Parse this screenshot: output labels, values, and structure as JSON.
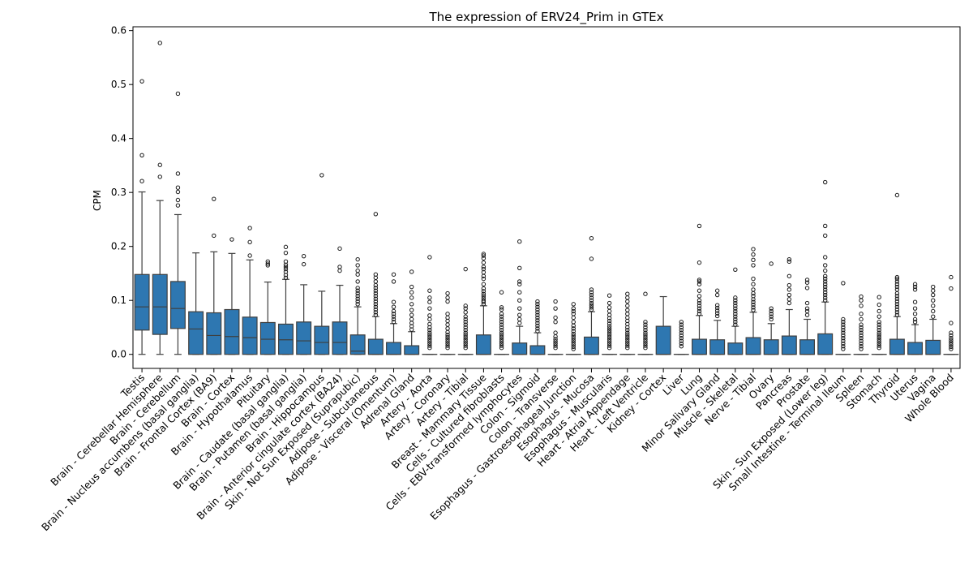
{
  "chart_data": {
    "type": "box",
    "title": "The expression of ERV24_Prim in GTEx",
    "xlabel": "",
    "ylabel": "CPM",
    "ylim": [
      -0.026,
      0.607
    ],
    "yticks": [
      0.0,
      0.1,
      0.2,
      0.3,
      0.4,
      0.5,
      0.6
    ],
    "ytick_labels": [
      "0.0",
      "0.1",
      "0.2",
      "0.3",
      "0.4",
      "0.5",
      "0.6"
    ],
    "grid": false,
    "color": "#2e77b1",
    "categories": [
      "Testis",
      "Brain - Cerebellar Hemisphere",
      "Brain - Cerebellum",
      "Brain - Nucleus accumbens (basal ganglia)",
      "Brain - Frontal Cortex (BA9)",
      "Brain - Cortex",
      "Brain - Hypothalamus",
      "Pituitary",
      "Brain - Caudate (basal ganglia)",
      "Brain - Putamen (basal ganglia)",
      "Brain - Hippocampus",
      "Brain - Anterior cingulate cortex (BA24)",
      "Skin - Not Sun Exposed (Suprapubic)",
      "Adipose - Subcutaneous",
      "Adipose - Visceral (Omentum)",
      "Adrenal Gland",
      "Artery - Aorta",
      "Artery - Coronary",
      "Artery - Tibial",
      "Breast - Mammary Tissue",
      "Cells - Cultured fibroblasts",
      "Cells - EBV-transformed lymphocytes",
      "Colon - Sigmoid",
      "Colon - Transverse",
      "Esophagus - Gastroesophageal Junction",
      "Esophagus - Mucosa",
      "Esophagus - Muscularis",
      "Heart - Atrial Appendage",
      "Heart - Left Ventricle",
      "Kidney - Cortex",
      "Liver",
      "Lung",
      "Minor Salivary Gland",
      "Muscle - Skeletal",
      "Nerve - Tibial",
      "Ovary",
      "Pancreas",
      "Prostate",
      "Skin - Sun Exposed (Lower leg)",
      "Small Intestine - Terminal Ileum",
      "Spleen",
      "Stomach",
      "Thyroid",
      "Uterus",
      "Vagina",
      "Whole Blood"
    ],
    "boxes": [
      {
        "min": 0.0,
        "q1": 0.045,
        "median": 0.088,
        "q3": 0.148,
        "max": 0.301,
        "outliers": [
          0.321,
          0.369,
          0.506
        ]
      },
      {
        "min": 0.0,
        "q1": 0.037,
        "median": 0.088,
        "q3": 0.148,
        "max": 0.285,
        "outliers": [
          0.329,
          0.351,
          0.577
        ]
      },
      {
        "min": 0.0,
        "q1": 0.048,
        "median": 0.085,
        "q3": 0.135,
        "max": 0.259,
        "outliers": [
          0.276,
          0.286,
          0.301,
          0.309,
          0.335,
          0.483
        ]
      },
      {
        "min": 0.0,
        "q1": 0.0,
        "median": 0.047,
        "q3": 0.079,
        "max": 0.188,
        "outliers": []
      },
      {
        "min": 0.0,
        "q1": 0.0,
        "median": 0.035,
        "q3": 0.077,
        "max": 0.19,
        "outliers": [
          0.22,
          0.288
        ]
      },
      {
        "min": 0.0,
        "q1": 0.0,
        "median": 0.033,
        "q3": 0.083,
        "max": 0.187,
        "outliers": [
          0.213
        ]
      },
      {
        "min": 0.0,
        "q1": 0.0,
        "median": 0.031,
        "q3": 0.069,
        "max": 0.175,
        "outliers": [
          0.183,
          0.208,
          0.234
        ]
      },
      {
        "min": 0.0,
        "q1": 0.0,
        "median": 0.028,
        "q3": 0.059,
        "max": 0.134,
        "outliers": [
          0.165,
          0.168,
          0.172
        ]
      },
      {
        "min": 0.0,
        "q1": 0.0,
        "median": 0.027,
        "q3": 0.056,
        "max": 0.139,
        "outliers": [
          0.142,
          0.147,
          0.153,
          0.158,
          0.162,
          0.166,
          0.172,
          0.188,
          0.199
        ]
      },
      {
        "min": 0.0,
        "q1": 0.0,
        "median": 0.025,
        "q3": 0.06,
        "max": 0.129,
        "outliers": [
          0.167,
          0.182
        ]
      },
      {
        "min": 0.0,
        "q1": 0.0,
        "median": 0.022,
        "q3": 0.052,
        "max": 0.117,
        "outliers": [
          0.332
        ]
      },
      {
        "min": 0.0,
        "q1": 0.0,
        "median": 0.022,
        "q3": 0.06,
        "max": 0.128,
        "outliers": [
          0.155,
          0.162,
          0.196
        ]
      },
      {
        "min": 0.0,
        "q1": 0.0,
        "median": 0.006,
        "q3": 0.036,
        "max": 0.088,
        "outliers": [
          0.093,
          0.098,
          0.103,
          0.108,
          0.113,
          0.118,
          0.123,
          0.135,
          0.148,
          0.155,
          0.165,
          0.176
        ]
      },
      {
        "min": 0.0,
        "q1": 0.0,
        "median": 0.0,
        "q3": 0.028,
        "max": 0.07,
        "outliers": [
          0.073,
          0.078,
          0.083,
          0.088,
          0.093,
          0.098,
          0.103,
          0.108,
          0.113,
          0.118,
          0.123,
          0.128,
          0.135,
          0.142,
          0.148,
          0.26
        ]
      },
      {
        "min": 0.0,
        "q1": 0.0,
        "median": 0.0,
        "q3": 0.022,
        "max": 0.057,
        "outliers": [
          0.06,
          0.065,
          0.07,
          0.075,
          0.08,
          0.088,
          0.097,
          0.135,
          0.148
        ]
      },
      {
        "min": 0.0,
        "q1": 0.0,
        "median": 0.0,
        "q3": 0.016,
        "max": 0.042,
        "outliers": [
          0.046,
          0.052,
          0.058,
          0.065,
          0.073,
          0.082,
          0.093,
          0.105,
          0.115,
          0.125,
          0.153
        ]
      },
      {
        "min": 0.0,
        "q1": 0.0,
        "median": 0.0,
        "q3": 0.0,
        "max": 0.0,
        "outliers": [
          0.012,
          0.016,
          0.02,
          0.024,
          0.028,
          0.032,
          0.036,
          0.04,
          0.045,
          0.05,
          0.056,
          0.065,
          0.072,
          0.085,
          0.097,
          0.105,
          0.118,
          0.18
        ]
      },
      {
        "min": 0.0,
        "q1": 0.0,
        "median": 0.0,
        "q3": 0.0,
        "max": 0.0,
        "outliers": [
          0.012,
          0.016,
          0.02,
          0.024,
          0.028,
          0.032,
          0.036,
          0.041,
          0.048,
          0.055,
          0.062,
          0.068,
          0.075,
          0.098,
          0.105,
          0.113
        ]
      },
      {
        "min": 0.0,
        "q1": 0.0,
        "median": 0.0,
        "q3": 0.0,
        "max": 0.0,
        "outliers": [
          0.012,
          0.016,
          0.02,
          0.024,
          0.028,
          0.032,
          0.036,
          0.04,
          0.045,
          0.05,
          0.055,
          0.06,
          0.065,
          0.07,
          0.078,
          0.085,
          0.09,
          0.158
        ]
      },
      {
        "min": 0.0,
        "q1": 0.0,
        "median": 0.0,
        "q3": 0.036,
        "max": 0.09,
        "outliers": [
          0.093,
          0.097,
          0.1,
          0.104,
          0.108,
          0.112,
          0.117,
          0.122,
          0.13,
          0.14,
          0.145,
          0.152,
          0.158,
          0.162,
          0.17,
          0.178,
          0.183,
          0.186
        ]
      },
      {
        "min": 0.0,
        "q1": 0.0,
        "median": 0.0,
        "q3": 0.0,
        "max": 0.0,
        "outliers": [
          0.012,
          0.016,
          0.02,
          0.024,
          0.028,
          0.032,
          0.036,
          0.04,
          0.045,
          0.05,
          0.055,
          0.06,
          0.065,
          0.07,
          0.075,
          0.083,
          0.087,
          0.115
        ]
      },
      {
        "min": 0.0,
        "q1": 0.0,
        "median": 0.0,
        "q3": 0.021,
        "max": 0.052,
        "outliers": [
          0.058,
          0.065,
          0.073,
          0.085,
          0.1,
          0.115,
          0.13,
          0.135,
          0.16,
          0.209
        ]
      },
      {
        "min": 0.0,
        "q1": 0.0,
        "median": 0.0,
        "q3": 0.016,
        "max": 0.04,
        "outliers": [
          0.043,
          0.048,
          0.053,
          0.058,
          0.063,
          0.068,
          0.073,
          0.078,
          0.083,
          0.088,
          0.093,
          0.098
        ]
      },
      {
        "min": 0.0,
        "q1": 0.0,
        "median": 0.0,
        "q3": 0.0,
        "max": 0.0,
        "outliers": [
          0.012,
          0.016,
          0.02,
          0.024,
          0.028,
          0.033,
          0.04,
          0.06,
          0.068,
          0.085,
          0.098
        ]
      },
      {
        "min": 0.0,
        "q1": 0.0,
        "median": 0.0,
        "q3": 0.0,
        "max": 0.0,
        "outliers": [
          0.01,
          0.014,
          0.018,
          0.022,
          0.026,
          0.03,
          0.034,
          0.038,
          0.043,
          0.048,
          0.053,
          0.06,
          0.068,
          0.075,
          0.08,
          0.085,
          0.093
        ]
      },
      {
        "min": 0.0,
        "q1": 0.0,
        "median": 0.0,
        "q3": 0.032,
        "max": 0.079,
        "outliers": [
          0.083,
          0.087,
          0.091,
          0.095,
          0.1,
          0.105,
          0.11,
          0.115,
          0.12,
          0.177,
          0.215
        ]
      },
      {
        "min": 0.0,
        "q1": 0.0,
        "median": 0.0,
        "q3": 0.0,
        "max": 0.0,
        "outliers": [
          0.012,
          0.016,
          0.02,
          0.024,
          0.028,
          0.032,
          0.036,
          0.04,
          0.044,
          0.048,
          0.052,
          0.057,
          0.062,
          0.067,
          0.073,
          0.08,
          0.087,
          0.095,
          0.109
        ]
      },
      {
        "min": 0.0,
        "q1": 0.0,
        "median": 0.0,
        "q3": 0.0,
        "max": 0.0,
        "outliers": [
          0.012,
          0.016,
          0.02,
          0.024,
          0.028,
          0.032,
          0.036,
          0.04,
          0.045,
          0.05,
          0.056,
          0.062,
          0.068,
          0.075,
          0.082,
          0.09,
          0.098,
          0.105,
          0.112
        ]
      },
      {
        "min": 0.0,
        "q1": 0.0,
        "median": 0.0,
        "q3": 0.0,
        "max": 0.0,
        "outliers": [
          0.012,
          0.016,
          0.02,
          0.024,
          0.028,
          0.032,
          0.036,
          0.04,
          0.045,
          0.05,
          0.055,
          0.06,
          0.112
        ]
      },
      {
        "min": 0.0,
        "q1": 0.0,
        "median": 0.0,
        "q3": 0.052,
        "max": 0.107,
        "outliers": []
      },
      {
        "min": 0.0,
        "q1": 0.0,
        "median": 0.0,
        "q3": 0.0,
        "max": 0.0,
        "outliers": [
          0.015,
          0.02,
          0.025,
          0.03,
          0.035,
          0.04,
          0.045,
          0.05,
          0.055,
          0.06
        ]
      },
      {
        "min": 0.0,
        "q1": 0.0,
        "median": 0.0,
        "q3": 0.028,
        "max": 0.072,
        "outliers": [
          0.075,
          0.08,
          0.085,
          0.09,
          0.095,
          0.1,
          0.108,
          0.118,
          0.13,
          0.135,
          0.138,
          0.17,
          0.238
        ]
      },
      {
        "min": 0.0,
        "q1": 0.0,
        "median": 0.0,
        "q3": 0.027,
        "max": 0.063,
        "outliers": [
          0.071,
          0.076,
          0.081,
          0.086,
          0.091,
          0.11,
          0.118
        ]
      },
      {
        "min": 0.0,
        "q1": 0.0,
        "median": 0.0,
        "q3": 0.021,
        "max": 0.052,
        "outliers": [
          0.055,
          0.06,
          0.065,
          0.07,
          0.075,
          0.08,
          0.085,
          0.09,
          0.095,
          0.1,
          0.105,
          0.157
        ]
      },
      {
        "min": 0.0,
        "q1": 0.0,
        "median": 0.0,
        "q3": 0.031,
        "max": 0.078,
        "outliers": [
          0.082,
          0.087,
          0.092,
          0.097,
          0.102,
          0.108,
          0.113,
          0.12,
          0.13,
          0.14,
          0.165,
          0.175,
          0.185,
          0.195
        ]
      },
      {
        "min": 0.0,
        "q1": 0.0,
        "median": 0.0,
        "q3": 0.027,
        "max": 0.057,
        "outliers": [
          0.065,
          0.07,
          0.075,
          0.08,
          0.085,
          0.168
        ]
      },
      {
        "min": 0.0,
        "q1": 0.0,
        "median": 0.0,
        "q3": 0.034,
        "max": 0.083,
        "outliers": [
          0.095,
          0.102,
          0.11,
          0.12,
          0.128,
          0.145,
          0.172,
          0.176
        ]
      },
      {
        "min": 0.0,
        "q1": 0.0,
        "median": 0.0,
        "q3": 0.027,
        "max": 0.065,
        "outliers": [
          0.073,
          0.08,
          0.085,
          0.095,
          0.123,
          0.133,
          0.138
        ]
      },
      {
        "min": 0.0,
        "q1": 0.0,
        "median": 0.0,
        "q3": 0.038,
        "max": 0.097,
        "outliers": [
          0.1,
          0.105,
          0.11,
          0.115,
          0.12,
          0.125,
          0.13,
          0.135,
          0.14,
          0.145,
          0.155,
          0.165,
          0.18,
          0.22,
          0.238,
          0.319
        ]
      },
      {
        "min": 0.0,
        "q1": 0.0,
        "median": 0.0,
        "q3": 0.0,
        "max": 0.0,
        "outliers": [
          0.01,
          0.015,
          0.02,
          0.025,
          0.03,
          0.035,
          0.04,
          0.045,
          0.05,
          0.055,
          0.06,
          0.065,
          0.132
        ]
      },
      {
        "min": 0.0,
        "q1": 0.0,
        "median": 0.0,
        "q3": 0.0,
        "max": 0.0,
        "outliers": [
          0.01,
          0.015,
          0.02,
          0.025,
          0.03,
          0.035,
          0.04,
          0.045,
          0.05,
          0.055,
          0.065,
          0.075,
          0.09,
          0.1,
          0.107
        ]
      },
      {
        "min": 0.0,
        "q1": 0.0,
        "median": 0.0,
        "q3": 0.0,
        "max": 0.0,
        "outliers": [
          0.012,
          0.016,
          0.02,
          0.024,
          0.028,
          0.032,
          0.036,
          0.04,
          0.045,
          0.05,
          0.055,
          0.06,
          0.07,
          0.08,
          0.092,
          0.106
        ]
      },
      {
        "min": 0.0,
        "q1": 0.0,
        "median": 0.0,
        "q3": 0.028,
        "max": 0.07,
        "outliers": [
          0.073,
          0.078,
          0.083,
          0.088,
          0.093,
          0.098,
          0.103,
          0.108,
          0.113,
          0.12,
          0.125,
          0.13,
          0.135,
          0.14,
          0.143,
          0.295
        ]
      },
      {
        "min": 0.0,
        "q1": 0.0,
        "median": 0.0,
        "q3": 0.022,
        "max": 0.055,
        "outliers": [
          0.06,
          0.065,
          0.075,
          0.085,
          0.097,
          0.12,
          0.125,
          0.13
        ]
      },
      {
        "min": 0.0,
        "q1": 0.0,
        "median": 0.0,
        "q3": 0.026,
        "max": 0.065,
        "outliers": [
          0.07,
          0.08,
          0.09,
          0.1,
          0.11,
          0.118,
          0.125
        ]
      },
      {
        "min": 0.0,
        "q1": 0.0,
        "median": 0.0,
        "q3": 0.0,
        "max": 0.0,
        "outliers": [
          0.01,
          0.014,
          0.018,
          0.022,
          0.026,
          0.03,
          0.035,
          0.04,
          0.058,
          0.122,
          0.143
        ]
      }
    ]
  }
}
